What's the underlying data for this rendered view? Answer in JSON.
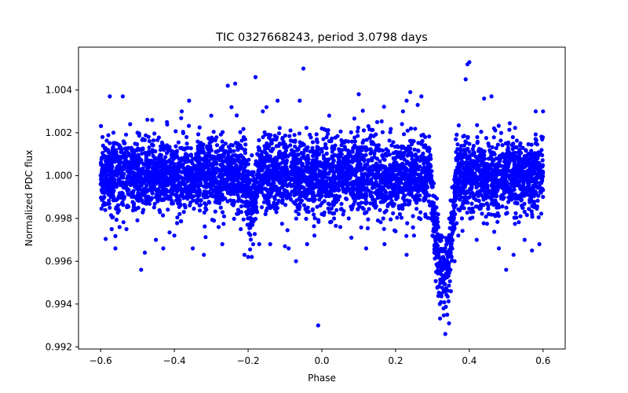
{
  "chart_data": {
    "type": "scatter",
    "title": "TIC 0327668243, period 3.0798 days",
    "xlabel": "Phase",
    "ylabel": "Normalized PDC flux",
    "xlim": [
      -0.66,
      0.66
    ],
    "ylim": [
      0.9919,
      1.006
    ],
    "x_ticks": [
      -0.6,
      -0.4,
      -0.2,
      0.0,
      0.2,
      0.4,
      0.6
    ],
    "x_tick_labels": [
      "−0.6",
      "−0.4",
      "−0.2",
      "0.0",
      "0.2",
      "0.4",
      "0.6"
    ],
    "y_ticks": [
      0.992,
      0.994,
      0.996,
      0.998,
      1.0,
      1.002,
      1.004
    ],
    "y_tick_labels": [
      "0.992",
      "0.994",
      "0.996",
      "0.998",
      "1.000",
      "1.002",
      "1.004"
    ],
    "grid": false,
    "marker_color": "#0000ff",
    "series": [
      {
        "description_of_bulk": "dense band of points spanning phase -0.6 to 0.6, flux approx 0.9985 to 1.0015",
        "points": [
          [
            -0.6,
            1.0
          ],
          [
            -0.59,
            0.999
          ],
          [
            -0.58,
            1.0012
          ],
          [
            -0.575,
            1.0037
          ],
          [
            -0.57,
            0.9975
          ],
          [
            -0.56,
            0.9966
          ],
          [
            -0.54,
            1.0037
          ],
          [
            -0.53,
            0.9975
          ],
          [
            -0.52,
            1.0024
          ],
          [
            -0.5,
            1.002
          ],
          [
            -0.49,
            0.9956
          ],
          [
            -0.48,
            0.9964
          ],
          [
            -0.46,
            1.0026
          ],
          [
            -0.45,
            0.997
          ],
          [
            -0.43,
            0.9966
          ],
          [
            -0.42,
            1.0025
          ],
          [
            -0.4,
            0.9972
          ],
          [
            -0.38,
            1.003
          ],
          [
            -0.36,
            1.0035
          ],
          [
            -0.35,
            0.9966
          ],
          [
            -0.32,
            0.9963
          ],
          [
            -0.3,
            1.0028
          ],
          [
            -0.28,
            0.9976
          ],
          [
            -0.27,
            0.9968
          ],
          [
            -0.255,
            1.0042
          ],
          [
            -0.245,
            1.0032
          ],
          [
            -0.235,
            1.0043
          ],
          [
            -0.22,
            0.9975
          ],
          [
            -0.21,
            0.9963
          ],
          [
            -0.2,
            0.9962
          ],
          [
            -0.19,
            0.9962
          ],
          [
            -0.18,
            1.0046
          ],
          [
            -0.17,
            0.9968
          ],
          [
            -0.16,
            1.003
          ],
          [
            -0.15,
            1.0032
          ],
          [
            -0.14,
            0.9968
          ],
          [
            -0.12,
            1.0035
          ],
          [
            -0.1,
            0.9967
          ],
          [
            -0.09,
            0.9966
          ],
          [
            -0.07,
            0.996
          ],
          [
            -0.06,
            1.0035
          ],
          [
            -0.05,
            1.005
          ],
          [
            -0.04,
            0.9968
          ],
          [
            -0.02,
            0.9972
          ],
          [
            -0.01,
            0.993
          ],
          [
            0.0,
            1.0022
          ],
          [
            0.02,
            1.0028
          ],
          [
            0.05,
            0.9976
          ],
          [
            0.08,
            0.9971
          ],
          [
            0.1,
            1.0038
          ],
          [
            0.12,
            0.9966
          ],
          [
            0.15,
            1.0025
          ],
          [
            0.17,
            0.9968
          ],
          [
            0.2,
            0.9974
          ],
          [
            0.22,
            1.003
          ],
          [
            0.23,
            1.0035
          ],
          [
            0.24,
            1.0039
          ],
          [
            0.23,
            0.9963
          ],
          [
            0.25,
            0.9972
          ],
          [
            0.26,
            1.0033
          ],
          [
            0.27,
            1.0037
          ],
          [
            0.28,
            1.0018
          ],
          [
            0.29,
            0.9988
          ],
          [
            0.295,
            0.998
          ],
          [
            0.3,
            0.9972
          ],
          [
            0.305,
            0.9964
          ],
          [
            0.31,
            0.9955
          ],
          [
            0.315,
            0.9948
          ],
          [
            0.32,
            0.994
          ],
          [
            0.325,
            0.9945
          ],
          [
            0.33,
            0.9938
          ],
          [
            0.335,
            0.9926
          ],
          [
            0.34,
            0.9935
          ],
          [
            0.345,
            0.9931
          ],
          [
            0.35,
            0.9946
          ],
          [
            0.36,
            0.996
          ],
          [
            0.37,
            0.9972
          ],
          [
            0.38,
            0.998
          ],
          [
            0.39,
            1.0045
          ],
          [
            0.395,
            1.0052
          ],
          [
            0.4,
            1.0053
          ],
          [
            0.42,
            0.997
          ],
          [
            0.44,
            1.0036
          ],
          [
            0.46,
            1.0037
          ],
          [
            0.48,
            0.9966
          ],
          [
            0.5,
            0.9956
          ],
          [
            0.52,
            0.9963
          ],
          [
            0.55,
            0.997
          ],
          [
            0.57,
            0.9965
          ],
          [
            0.58,
            1.003
          ],
          [
            0.59,
            0.9968
          ],
          [
            0.6,
            1.003
          ]
        ]
      }
    ]
  }
}
